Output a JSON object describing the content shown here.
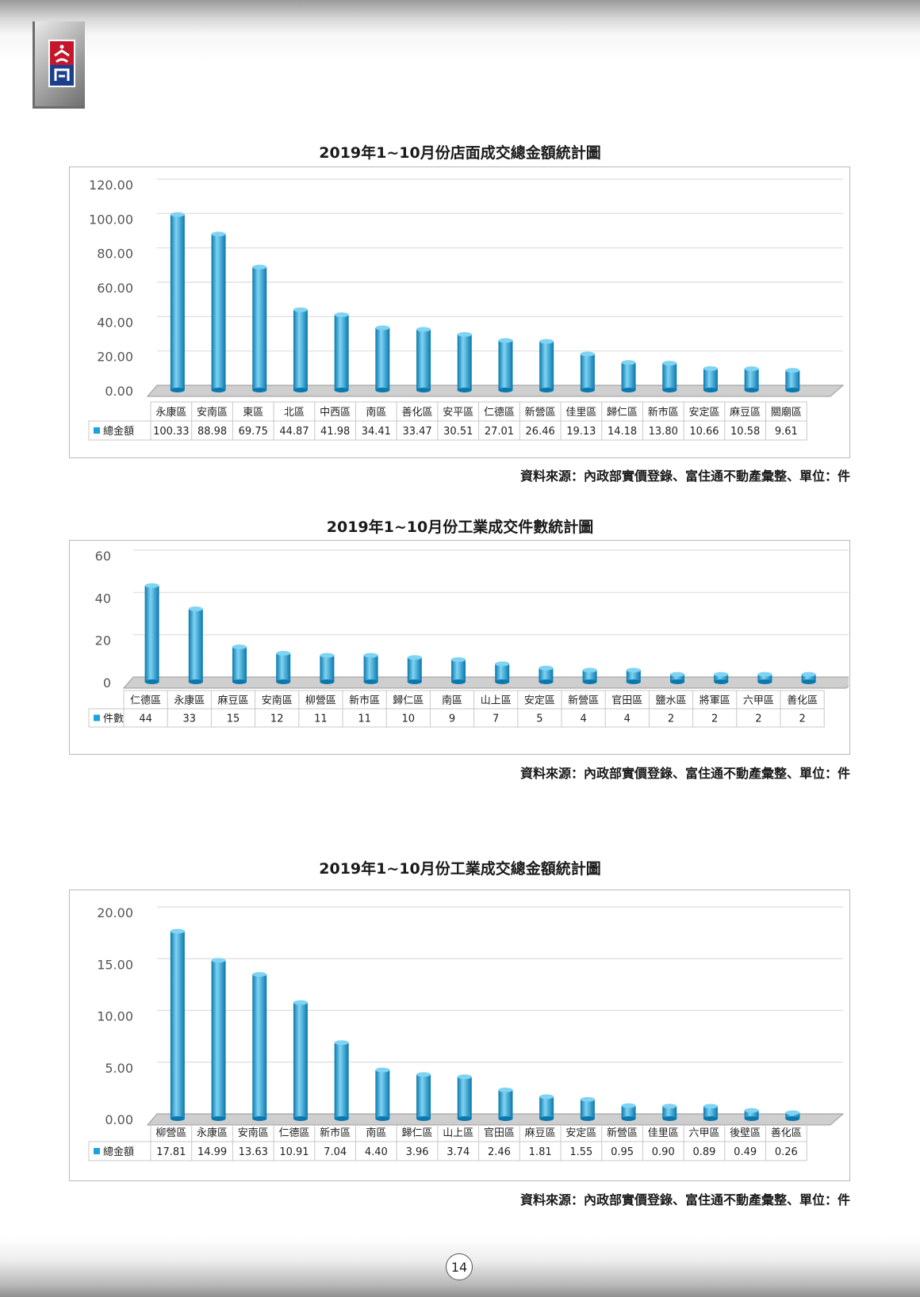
{
  "page": {
    "number": "14"
  },
  "colors": {
    "bar": "#1aa3dc",
    "bar_dark": "#0a78ad",
    "bar_light": "#7fd3f3",
    "grid": "#dddddd",
    "floor": "#6b6b6b"
  },
  "logo": {
    "icon": "company-logo-icon"
  },
  "chart_data": [
    {
      "type": "bar",
      "title": "2019年1~10月份店面成交總金額統計圖",
      "categories": [
        "永康區",
        "安南區",
        "東區",
        "北區",
        "中西區",
        "南區",
        "善化區",
        "安平區",
        "仁德區",
        "新營區",
        "佳里區",
        "歸仁區",
        "新市區",
        "安定區",
        "麻豆區",
        "關廟區"
      ],
      "series": [
        {
          "name": "總金額",
          "values": [
            100.33,
            88.98,
            69.75,
            44.87,
            41.98,
            34.41,
            33.47,
            30.51,
            27.01,
            26.46,
            19.13,
            14.18,
            13.8,
            10.66,
            10.58,
            9.61
          ]
        }
      ],
      "value_labels": [
        "100.33",
        "88.98",
        "69.75",
        "44.87",
        "41.98",
        "34.41",
        "33.47",
        "30.51",
        "27.01",
        "26.46",
        "19.13",
        "14.18",
        "13.80",
        "10.66",
        "10.58",
        "9.61"
      ],
      "yticks": [
        "0.00",
        "20.00",
        "40.00",
        "60.00",
        "80.00",
        "100.00",
        "120.00"
      ],
      "ylim": [
        0,
        120
      ],
      "xlabel": "",
      "ylabel": "",
      "grid": true,
      "legend": "data-table",
      "source": "資料來源：內政部實價登錄、富住通不動產彙整、單位：件"
    },
    {
      "type": "bar",
      "title": "2019年1~10月份工業成交件數統計圖",
      "categories": [
        "仁德區",
        "永康區",
        "麻豆區",
        "安南區",
        "柳營區",
        "新市區",
        "歸仁區",
        "南區",
        "山上區",
        "安定區",
        "新營區",
        "官田區",
        "鹽水區",
        "將軍區",
        "六甲區",
        "善化區"
      ],
      "series": [
        {
          "name": "件數",
          "values": [
            44,
            33,
            15,
            12,
            11,
            11,
            10,
            9,
            7,
            5,
            4,
            4,
            2,
            2,
            2,
            2
          ]
        }
      ],
      "value_labels": [
        "44",
        "33",
        "15",
        "12",
        "11",
        "11",
        "10",
        "9",
        "7",
        "5",
        "4",
        "4",
        "2",
        "2",
        "2",
        "2"
      ],
      "yticks": [
        "0",
        "20",
        "40",
        "60"
      ],
      "ylim": [
        0,
        60
      ],
      "xlabel": "",
      "ylabel": "",
      "grid": true,
      "legend": "data-table",
      "source": "資料來源：內政部實價登錄、富住通不動產彙整、單位：件"
    },
    {
      "type": "bar",
      "title": "2019年1~10月份工業成交總金額統計圖",
      "categories": [
        "柳營區",
        "永康區",
        "安南區",
        "仁德區",
        "新市區",
        "南區",
        "歸仁區",
        "山上區",
        "官田區",
        "麻豆區",
        "安定區",
        "新營區",
        "佳里區",
        "六甲區",
        "後壁區",
        "善化區"
      ],
      "series": [
        {
          "name": "總金額",
          "values": [
            17.81,
            14.99,
            13.63,
            10.91,
            7.04,
            4.4,
            3.96,
            3.74,
            2.46,
            1.81,
            1.55,
            0.95,
            0.9,
            0.89,
            0.49,
            0.26
          ]
        }
      ],
      "value_labels": [
        "17.81",
        "14.99",
        "13.63",
        "10.91",
        "7.04",
        "4.40",
        "3.96",
        "3.74",
        "2.46",
        "1.81",
        "1.55",
        "0.95",
        "0.90",
        "0.89",
        "0.49",
        "0.26"
      ],
      "yticks": [
        "0.00",
        "5.00",
        "10.00",
        "15.00",
        "20.00"
      ],
      "ylim": [
        0,
        20
      ],
      "xlabel": "",
      "ylabel": "",
      "grid": true,
      "legend": "data-table",
      "source": "資料來源：內政部實價登錄、富住通不動產彙整、單位：件"
    }
  ]
}
